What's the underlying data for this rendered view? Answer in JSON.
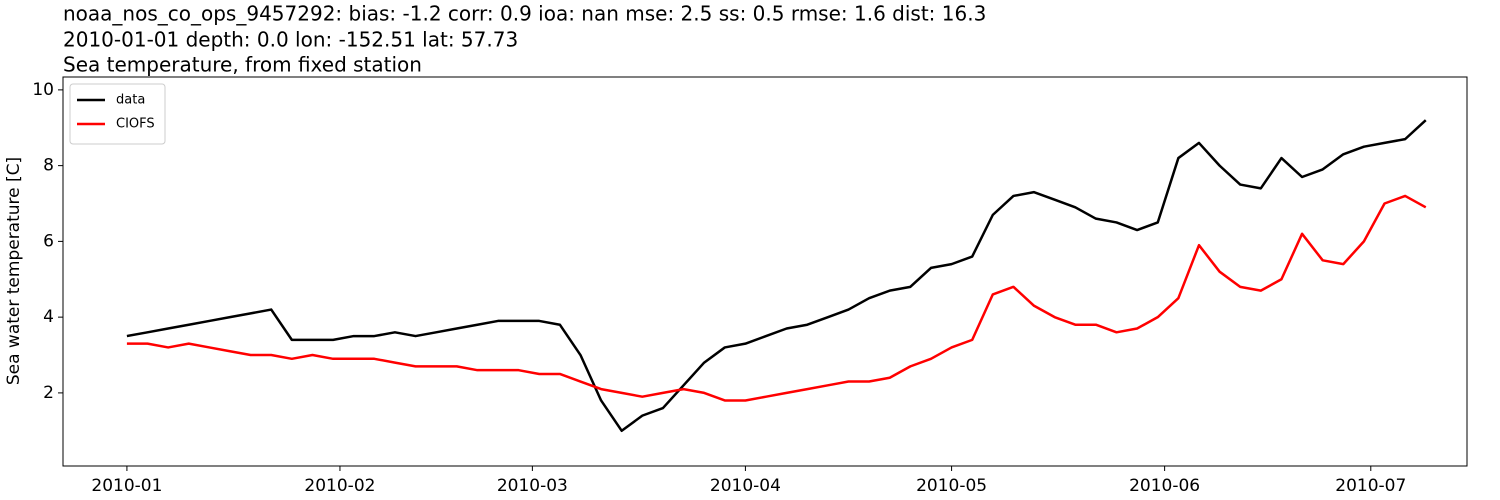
{
  "chart_data": {
    "type": "line",
    "title": "noaa_nos_co_ops_9457292: bias: -1.2  corr: 0.9  ioa: nan  mse: 2.5  ss: 0.5  rmse: 1.6  dist: 16.3",
    "subtitle": "2010-01-01 depth: 0.0 lon: -152.51 lat: 57.73",
    "subtitle2": "Sea temperature, from fixed station",
    "y_label": "Sea water temperature [C]",
    "x": [
      0,
      3,
      6,
      9,
      12,
      15,
      18,
      21,
      24,
      27,
      30,
      33,
      36,
      39,
      42,
      45,
      48,
      51,
      54,
      57,
      60,
      63,
      66,
      69,
      72,
      75,
      78,
      81,
      84,
      87,
      90,
      93,
      96,
      99,
      102,
      105,
      108,
      111,
      114,
      117,
      120,
      123,
      126,
      129,
      132,
      135,
      138,
      141,
      144,
      147,
      150,
      153,
      156,
      159,
      162,
      165,
      168,
      171,
      174,
      177,
      180,
      183,
      186,
      189
    ],
    "series": [
      {
        "name": "data",
        "color": "#000000",
        "values": [
          3.5,
          3.6,
          3.7,
          3.8,
          3.9,
          4.0,
          4.1,
          4.2,
          3.4,
          3.4,
          3.4,
          3.5,
          3.5,
          3.6,
          3.5,
          3.6,
          3.7,
          3.8,
          3.9,
          3.9,
          3.9,
          3.8,
          3.0,
          1.8,
          1.0,
          1.4,
          1.6,
          2.2,
          2.8,
          3.2,
          3.3,
          3.5,
          3.7,
          3.8,
          4.0,
          4.2,
          4.5,
          4.7,
          4.8,
          5.3,
          5.4,
          5.6,
          6.7,
          7.2,
          7.3,
          7.1,
          6.9,
          6.6,
          6.5,
          6.3,
          6.5,
          8.2,
          8.6,
          8.0,
          7.5,
          7.4,
          8.2,
          7.7,
          7.9,
          8.3,
          8.5,
          8.6,
          8.7,
          9.2
        ]
      },
      {
        "name": "CIOFS",
        "color": "#ff0000",
        "values": [
          3.3,
          3.3,
          3.2,
          3.3,
          3.2,
          3.1,
          3.0,
          3.0,
          2.9,
          3.0,
          2.9,
          2.9,
          2.9,
          2.8,
          2.7,
          2.7,
          2.7,
          2.6,
          2.6,
          2.6,
          2.5,
          2.5,
          2.3,
          2.1,
          2.0,
          1.9,
          2.0,
          2.1,
          2.0,
          1.8,
          1.8,
          1.9,
          2.0,
          2.1,
          2.2,
          2.3,
          2.3,
          2.4,
          2.7,
          2.9,
          3.2,
          3.4,
          4.6,
          4.8,
          4.3,
          4.0,
          3.8,
          3.8,
          3.6,
          3.7,
          4.0,
          4.5,
          5.9,
          5.2,
          4.8,
          4.7,
          5.0,
          6.2,
          5.5,
          5.4,
          6.0,
          7.0,
          7.2,
          6.9
        ]
      }
    ],
    "xlim": [
      -9.3,
      195
    ],
    "xticks": [
      {
        "value": 0,
        "label": "2010-01"
      },
      {
        "value": 31,
        "label": "2010-02"
      },
      {
        "value": 59,
        "label": "2010-03"
      },
      {
        "value": 90,
        "label": "2010-04"
      },
      {
        "value": 120,
        "label": "2010-05"
      },
      {
        "value": 151,
        "label": "2010-06"
      },
      {
        "value": 181,
        "label": "2010-07"
      }
    ],
    "ylim": [
      0.07,
      10.34
    ],
    "yticks": [
      2,
      4,
      6,
      8,
      10
    ],
    "legend": "upper left",
    "grid": false
  }
}
